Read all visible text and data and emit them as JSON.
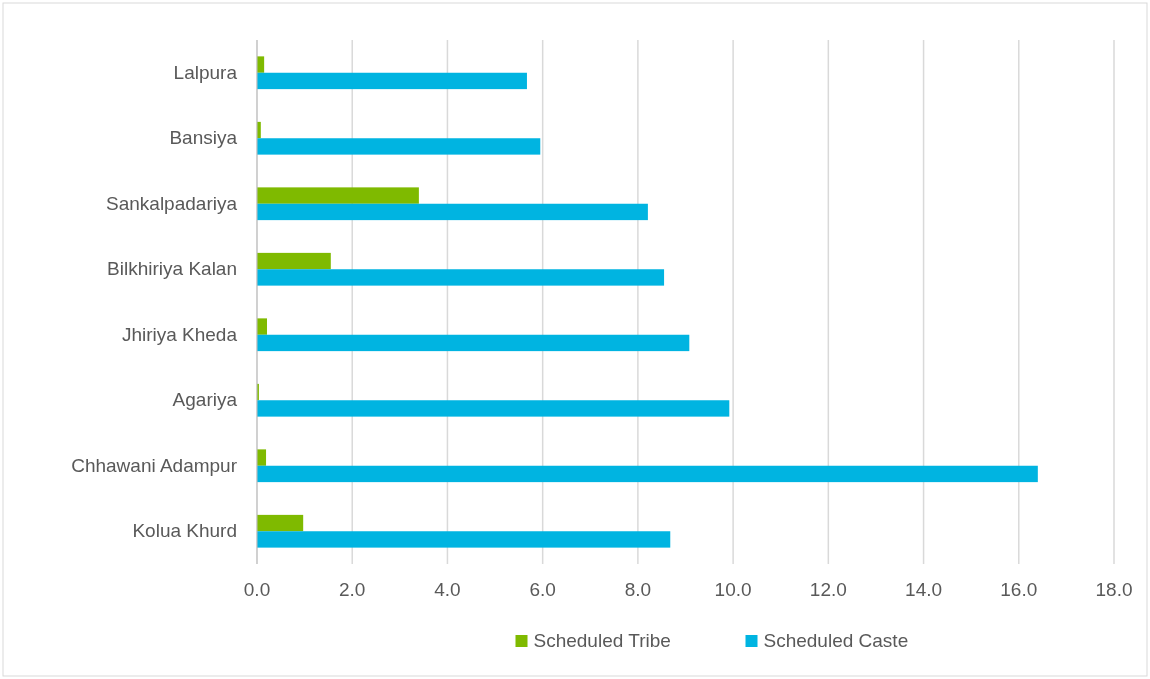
{
  "chart_data": {
    "type": "bar",
    "orientation": "horizontal",
    "categories": [
      "Lalpura",
      "Bansiya",
      "Sankalpadariya",
      "Bilkhiriya Kalan",
      "Jhiriya Kheda",
      "Agariya",
      "Chhawani Adampur",
      "Kolua Khurd"
    ],
    "series": [
      {
        "name": "Scheduled Tribe",
        "color": "#7fba00",
        "values": [
          0.15,
          0.08,
          3.4,
          1.55,
          0.21,
          0.04,
          0.19,
          0.97
        ]
      },
      {
        "name": "Scheduled Caste",
        "color": "#00b4e1",
        "values": [
          5.67,
          5.95,
          8.21,
          8.55,
          9.08,
          9.92,
          16.4,
          8.68
        ]
      }
    ],
    "xlim": [
      0,
      18
    ],
    "xticks": [
      {
        "value": 0,
        "label": "0.0"
      },
      {
        "value": 2,
        "label": "2.0"
      },
      {
        "value": 4,
        "label": "4.0"
      },
      {
        "value": 6,
        "label": "6.0"
      },
      {
        "value": 8,
        "label": "8.0"
      },
      {
        "value": 10,
        "label": "10.0"
      },
      {
        "value": 12,
        "label": "12.0"
      },
      {
        "value": 14,
        "label": "14.0"
      },
      {
        "value": 16,
        "label": "16.0"
      },
      {
        "value": 18,
        "label": "18.0"
      }
    ],
    "grid": "x",
    "legend": "bottom"
  }
}
